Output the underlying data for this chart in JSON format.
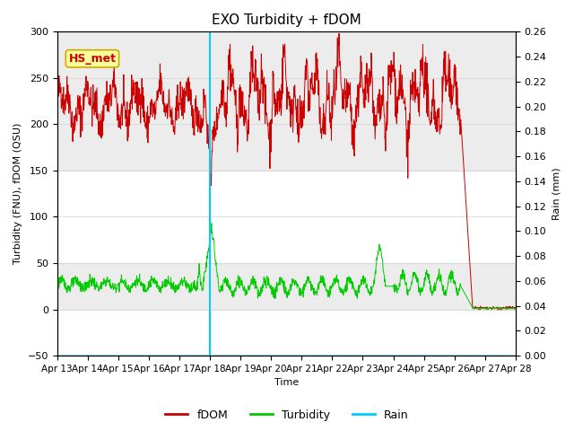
{
  "title": "EXO Turbidity + fDOM",
  "ylabel_left": "Turbidity (FNU), fDOM (QSU)",
  "ylabel_right": "Rain (mm)",
  "xlabel": "Time",
  "ylim_left": [
    -50,
    300
  ],
  "ylim_right": [
    0.0,
    0.26
  ],
  "yticks_left": [
    -50,
    0,
    50,
    100,
    150,
    200,
    250,
    300
  ],
  "yticks_right": [
    0.0,
    0.02,
    0.04,
    0.06,
    0.08,
    0.1,
    0.12,
    0.14,
    0.16,
    0.18,
    0.2,
    0.22,
    0.24,
    0.26
  ],
  "xticklabels": [
    "Apr 13",
    "Apr 14",
    "Apr 15",
    "Apr 16",
    "Apr 17",
    "Apr 18",
    "Apr 19",
    "Apr 20",
    "Apr 21",
    "Apr 22",
    "Apr 23",
    "Apr 24",
    "Apr 25",
    "Apr 26",
    "Apr 27",
    "Apr 28"
  ],
  "fdom_color": "#cc0000",
  "turbidity_color": "#00cc00",
  "rain_color": "#00ccff",
  "shading_color": "#e0e0e0",
  "annotation_text": "HS_met",
  "annotation_box_facecolor": "#ffff99",
  "annotation_box_edgecolor": "#ccaa00",
  "background_color": "#ffffff",
  "grid_color": "#cccccc",
  "title_fontsize": 11,
  "axis_fontsize": 8,
  "label_fontsize": 8,
  "legend_fontsize": 9
}
